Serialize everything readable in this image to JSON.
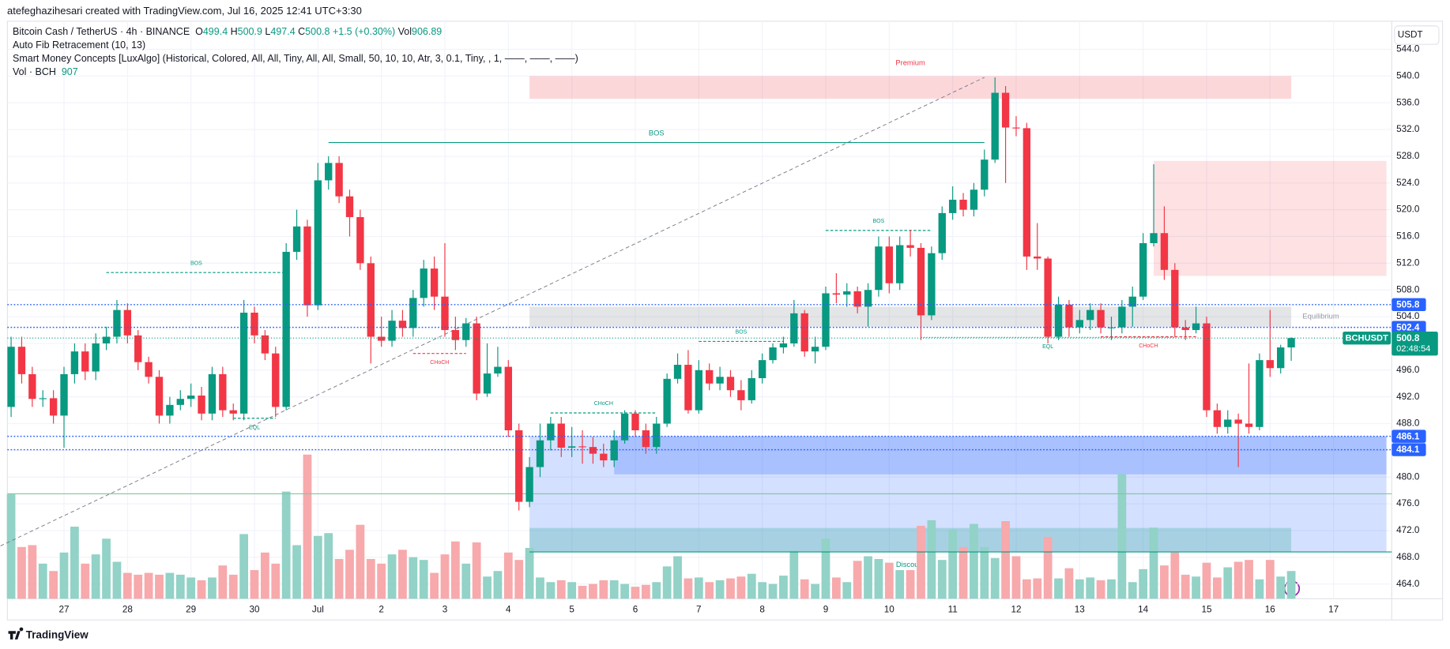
{
  "header": {
    "credit": "atefeghazihesari created with TradingView.com, Jul 16, 2025 12:41 UTC+3:30",
    "currency_button": "USDT",
    "brand": "TradingView"
  },
  "legend": {
    "symbol": "Bitcoin Cash / TetherUS · 4h · BINANCE",
    "ohlc": [
      {
        "label": "O",
        "value": 499.4
      },
      {
        "label": "H",
        "value": 500.9
      },
      {
        "label": "L",
        "value": 497.4
      },
      {
        "label": "C",
        "value": 500.8
      }
    ],
    "change": "+1.5 (+0.30%)",
    "volume_label": "Vol",
    "volume": 906.89,
    "indicators": [
      "Auto Fib Retracement (10, 13)",
      "Smart Money Concepts [LuxAlgo] (Historical, Colored, All, All, Tiny, All, All, Small, 50, 10, 10, Atr, 3, 0.1, Tiny, , 1, ——, ——, ——)"
    ],
    "vol_indicator": {
      "name": "Vol · BCH",
      "value": 907
    }
  },
  "chart_data": {
    "type": "candlestick",
    "up_color": "#089981",
    "down_color": "#f23645",
    "volume_up_color": "#92d2c7",
    "volume_down_color": "#f7a9ac",
    "xlim": [
      -1.05,
      130.5
    ],
    "ylim": [
      461.8,
      548.2
    ],
    "grid": true,
    "xticks": [
      {
        "value": 5,
        "label": "27"
      },
      {
        "value": 11,
        "label": "28"
      },
      {
        "value": 17,
        "label": "29"
      },
      {
        "value": 23,
        "label": "30"
      },
      {
        "value": 29,
        "label": "Jul"
      },
      {
        "value": 35,
        "label": "2"
      },
      {
        "value": 41,
        "label": "3"
      },
      {
        "value": 47,
        "label": "4"
      },
      {
        "value": 53,
        "label": "5"
      },
      {
        "value": 59,
        "label": "6"
      },
      {
        "value": 65,
        "label": "7"
      },
      {
        "value": 71,
        "label": "8"
      },
      {
        "value": 77,
        "label": "9"
      },
      {
        "value": 83,
        "label": "10"
      },
      {
        "value": 89,
        "label": "11"
      },
      {
        "value": 95,
        "label": "12"
      },
      {
        "value": 101,
        "label": "13"
      },
      {
        "value": 107,
        "label": "14"
      },
      {
        "value": 113,
        "label": "15"
      },
      {
        "value": 119,
        "label": "16"
      },
      {
        "value": 125,
        "label": "17"
      }
    ],
    "yticks": [
      {
        "value": 464,
        "label": "464.0"
      },
      {
        "value": 468,
        "label": "468.0"
      },
      {
        "value": 472,
        "label": "472.0"
      },
      {
        "value": 476,
        "label": "476.0"
      },
      {
        "value": 480,
        "label": "480.0"
      },
      {
        "value": 484,
        "label": "484.0"
      },
      {
        "value": 488,
        "label": "488.0"
      },
      {
        "value": 492,
        "label": "492.0"
      },
      {
        "value": 496,
        "label": "496.0"
      },
      {
        "value": 500,
        "label": "500.0"
      },
      {
        "value": 504,
        "label": "504.0"
      },
      {
        "value": 508,
        "label": "508.0"
      },
      {
        "value": 512,
        "label": "512.0"
      },
      {
        "value": 516,
        "label": "516.0"
      },
      {
        "value": 520,
        "label": "520.0"
      },
      {
        "value": 524,
        "label": "524.0"
      },
      {
        "value": 528,
        "label": "528.0"
      },
      {
        "value": 532,
        "label": "532.0"
      },
      {
        "value": 536,
        "label": "536.0"
      },
      {
        "value": 540,
        "label": "540.0"
      },
      {
        "value": 544,
        "label": "544.0"
      }
    ],
    "open": [
      490.5,
      499.5,
      495.4,
      491.7,
      491.8,
      489.2,
      495.4,
      498.8,
      495.8,
      500,
      501,
      505,
      501.2,
      497.2,
      495,
      489.2,
      490.8,
      491.7,
      492.2,
      489.5,
      495.4,
      490,
      489.5,
      504.6,
      501.2,
      498.5,
      490.5,
      513.7,
      517.5,
      505.7,
      524.4,
      527,
      522,
      518.9,
      512,
      501,
      500.4,
      503.4,
      502.3,
      506.8,
      511.2,
      507,
      502,
      500.5,
      503,
      492.5,
      495.5,
      496.5,
      487,
      476.3,
      481.5,
      485.5,
      488,
      484.4,
      484.6,
      484.5,
      483.5,
      482.5,
      485.5,
      489.5,
      487,
      484.5,
      488,
      494.7,
      496.8,
      490,
      496,
      494,
      495,
      493,
      491.5,
      494.8,
      497.5,
      499.4,
      500,
      504.5,
      498.8,
      499.5,
      507.5,
      507.3,
      507.8,
      505.5,
      508,
      514.5,
      509,
      514.7,
      514.3,
      504.2,
      513.5,
      519.5,
      521.5,
      520,
      523,
      527.5,
      537.5,
      532.3,
      532.2,
      513,
      512.7,
      501,
      505.8,
      502.4,
      503.5,
      505,
      502.4,
      502.4,
      505.5,
      507,
      515,
      516.5,
      511,
      502.4,
      502,
      503,
      490,
      487.5,
      488.6,
      488,
      487.5,
      497.5,
      496.3,
      499.4
    ],
    "high": [
      501,
      501,
      496.5,
      493,
      493,
      496.5,
      500,
      500,
      501.5,
      502.5,
      506.5,
      506,
      502,
      498,
      496,
      492,
      493,
      494,
      493.5,
      496.5,
      496.5,
      491,
      506.5,
      505.5,
      502,
      499.5,
      515,
      520,
      518.5,
      527,
      528,
      528,
      523,
      520,
      513,
      504,
      505,
      505,
      508,
      512.5,
      513,
      515,
      504,
      503.8,
      504,
      500,
      499.5,
      497.5,
      488,
      483,
      488,
      489,
      489,
      487.5,
      487,
      486,
      485,
      487,
      490,
      490,
      488,
      489,
      495.5,
      498.5,
      499,
      497.5,
      497,
      496.5,
      496,
      494.5,
      496,
      498.5,
      500,
      501,
      506.5,
      505,
      501,
      508.5,
      510.5,
      509,
      508.5,
      509,
      516,
      516,
      516,
      517,
      515,
      514.5,
      520.5,
      523.5,
      522.5,
      524,
      529,
      539.8,
      538.5,
      534,
      533,
      518,
      513,
      507,
      506.5,
      505,
      506,
      506,
      504,
      506.5,
      508.5,
      516.5,
      526.8,
      520.5,
      512,
      503.5,
      505.5,
      504,
      491,
      490,
      489.5,
      497,
      498.5,
      505,
      499.8,
      500.9
    ],
    "low": [
      489,
      494,
      490.5,
      490.5,
      488,
      484.4,
      494,
      494.5,
      494.5,
      499,
      500,
      500,
      496,
      494,
      488,
      488,
      490,
      490.5,
      488.5,
      488.5,
      489,
      488.5,
      488.5,
      500,
      497.5,
      489,
      490,
      512.5,
      504,
      505,
      523,
      521,
      516,
      511,
      497,
      499.5,
      499.5,
      501,
      501,
      505.5,
      505,
      501,
      499,
      499.5,
      491.5,
      492,
      495,
      486,
      475,
      475.5,
      480,
      484,
      483,
      483,
      482,
      482,
      481.5,
      481.5,
      485,
      486,
      483.5,
      483.5,
      487.5,
      494,
      489.5,
      489.5,
      493,
      493,
      492,
      490,
      491,
      494,
      497,
      498.5,
      499.5,
      498,
      497,
      499,
      506,
      505.5,
      504.5,
      502.5,
      507,
      507.5,
      508,
      513,
      500.5,
      503.5,
      512.5,
      518.5,
      519,
      519,
      522,
      527,
      524,
      531,
      511,
      511,
      500,
      500.5,
      501,
      501.5,
      502,
      501.5,
      500.5,
      501.5,
      502.5,
      506.5,
      514.5,
      509.5,
      501,
      500.5,
      501.5,
      489,
      486.5,
      486.5,
      481.5,
      486.5,
      487,
      495,
      495.5,
      497.4
    ],
    "close": [
      499.5,
      495.4,
      491.7,
      491.8,
      489.2,
      495.4,
      498.8,
      495.8,
      500,
      501,
      505,
      501.2,
      497.2,
      495,
      489.2,
      490.8,
      491.7,
      492.2,
      489.5,
      495.4,
      490,
      489.5,
      504.6,
      501.2,
      498.5,
      490.5,
      513.7,
      517.5,
      505.7,
      524.4,
      527,
      522,
      518.9,
      512,
      501,
      500.4,
      503.4,
      502.3,
      506.8,
      511.2,
      507,
      502,
      500.5,
      503,
      492.5,
      495.5,
      496.5,
      487,
      476.3,
      481.5,
      485.5,
      488,
      484.4,
      484.6,
      484.5,
      483.5,
      482.5,
      485.5,
      489.5,
      487,
      484.5,
      488,
      494.7,
      496.8,
      490,
      496,
      494,
      495,
      493,
      491.5,
      494.8,
      497.5,
      499.4,
      500,
      504.5,
      498.8,
      499.5,
      507.5,
      507.3,
      507.8,
      505.5,
      508,
      514.5,
      509,
      514.7,
      514.3,
      504.2,
      513.5,
      519.5,
      521.5,
      520,
      523,
      527.5,
      537.5,
      532.3,
      532.2,
      513,
      512.7,
      501,
      505.8,
      502.4,
      503.5,
      505,
      502.4,
      502.4,
      505.5,
      507,
      515,
      516.5,
      511,
      502.4,
      502,
      503,
      490,
      487.5,
      488.6,
      488,
      487.5,
      497.5,
      496.3,
      499.4,
      500.8
    ],
    "volume": [
      113,
      56,
      58,
      38,
      30,
      50,
      78,
      38,
      48,
      65,
      40,
      28,
      26,
      28,
      26,
      28,
      26,
      23,
      20,
      23,
      36,
      26,
      70,
      31,
      50,
      38,
      116,
      58,
      156,
      68,
      71,
      43,
      53,
      80,
      43,
      38,
      48,
      53,
      45,
      42,
      28,
      48,
      62,
      38,
      61,
      24,
      30,
      50,
      42,
      55,
      23,
      18,
      20,
      18,
      14,
      16,
      20,
      20,
      16,
      13,
      15,
      18,
      35,
      46,
      22,
      23,
      18,
      20,
      22,
      24,
      27,
      18,
      16,
      25,
      52,
      21,
      16,
      65,
      23,
      18,
      41,
      46,
      43,
      39,
      31,
      31,
      79,
      85,
      42,
      75,
      56,
      81,
      56,
      44,
      84,
      46,
      21,
      22,
      67,
      22,
      33,
      21,
      23,
      20,
      21,
      135,
      18,
      32,
      77,
      36,
      50,
      26,
      24,
      39,
      23,
      34,
      40,
      42,
      21,
      42,
      24,
      30
    ],
    "zones": [
      {
        "name": "Premium",
        "top": 540,
        "bottom": 536.6,
        "from": 49,
        "to": 121,
        "color": "rgba(242,54,69,0.2)",
        "label_color": "#f23645",
        "label_position": "top"
      },
      {
        "name": "Equilibrium",
        "top": 505.5,
        "bottom": 502.5,
        "from": 49,
        "to": 121,
        "color": "rgba(120,123,134,0.2)",
        "label_color": "#9598a1",
        "label_position": "right"
      },
      {
        "top": 486.1,
        "bottom": 468.8,
        "from": 49,
        "to": 130,
        "color": "rgba(41,98,255,0.2)"
      },
      {
        "top": 486.1,
        "bottom": 480.4,
        "from": 57,
        "to": 130,
        "color": "rgba(41,98,255,0.25)"
      },
      {
        "name": "Discount",
        "top": 472.4,
        "bottom": 468.8,
        "from": 49,
        "to": 121,
        "color": "rgba(8,153,129,0.22)",
        "label_color": "#089981",
        "label_position": "bottom"
      },
      {
        "top": 527.3,
        "bottom": 510.1,
        "from": 108,
        "to": 130,
        "color": "rgba(242,54,69,0.15)"
      }
    ],
    "structures": [
      {
        "label": "BOS",
        "price": 530.05,
        "from": 30,
        "to": 92,
        "style": "solid",
        "color": "#089981",
        "label_position": "above"
      },
      {
        "label": "BOS",
        "price": 510.6,
        "from": 9,
        "to": 26,
        "style": "dashed",
        "color": "#089981",
        "label_position": "above"
      },
      {
        "label": "CHoCH",
        "price": 498.5,
        "from": 38,
        "to": 43,
        "style": "dashed",
        "color": "#f23645",
        "label_position": "below"
      },
      {
        "label": "CHoCH",
        "price": 489.6,
        "from": 51,
        "to": 61,
        "style": "dashed",
        "color": "#089981",
        "label_position": "above"
      },
      {
        "label": "BOS",
        "price": 500.3,
        "from": 65,
        "to": 73,
        "style": "dashed",
        "color": "#089981",
        "label_position": "above"
      },
      {
        "label": "BOS",
        "price": 516.9,
        "from": 77,
        "to": 87,
        "style": "dashed",
        "color": "#089981",
        "label_position": "above"
      },
      {
        "label": "CHoCH",
        "price": 501,
        "from": 103,
        "to": 112,
        "style": "dashed",
        "color": "#f23645",
        "label_position": "below"
      },
      {
        "label": "EQL",
        "price": 488.8,
        "from": 21,
        "to": 25,
        "style": "dashed",
        "color": "#089981",
        "label_position": "below"
      },
      {
        "label": "EQL",
        "price": 500.9,
        "from": 86,
        "to": 110,
        "style": "dotted",
        "color": "#089981",
        "label_position": "below"
      }
    ],
    "lines": [
      {
        "price": 477.5,
        "from": -1,
        "color": "#7fc89a"
      },
      {
        "price": 468.8,
        "from": 49,
        "color": "#089981"
      }
    ],
    "fib": {
      "start": -1,
      "start_price": 469.7,
      "end": 92,
      "end_price": 539.8,
      "color": "#787b86"
    },
    "levels": [
      505.8,
      502.4,
      486.1,
      484.1
    ],
    "level_color": "#2962ff",
    "last_price": {
      "symbol": "BCHUSDT",
      "value": 500.8,
      "countdown": "02:48:54",
      "color": "#089981"
    }
  }
}
